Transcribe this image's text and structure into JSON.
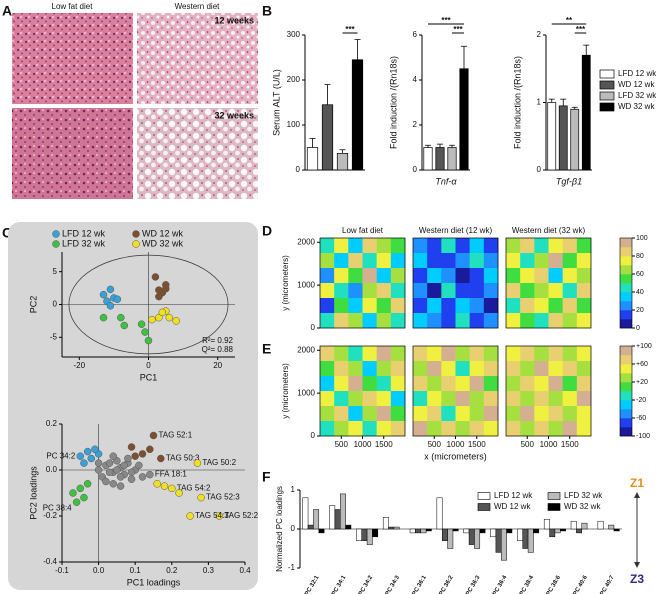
{
  "labels": {
    "panels": [
      "A",
      "B",
      "C",
      "D",
      "E",
      "F"
    ]
  },
  "histology": {
    "columns": [
      "Low fat diet",
      "Western diet"
    ],
    "rows": [
      "12 weeks",
      "32 weeks"
    ]
  },
  "chart_data": [
    {
      "type": "bar",
      "series": [
        {
          "name": "LFD 12 wk",
          "color": "#ffffff"
        },
        {
          "name": "WD 12 wk",
          "color": "#555555"
        },
        {
          "name": "LFD 32 wk",
          "color": "#bbbbbb"
        },
        {
          "name": "WD 32 wk",
          "color": "#000000"
        }
      ],
      "subplots": [
        {
          "ylabel": "Serum ALT (U/L)",
          "values": [
            50,
            145,
            37,
            245
          ],
          "errors": [
            20,
            45,
            8,
            45
          ],
          "ylim": [
            0,
            300
          ],
          "yticks": [
            0,
            100,
            200,
            300
          ],
          "annotations": [
            "***"
          ]
        },
        {
          "ylabel": "Fold induction /(Rn18s)",
          "xlabel": "Tnf-α",
          "values": [
            1,
            1,
            1,
            4.5
          ],
          "errors": [
            0.1,
            0.15,
            0.1,
            1
          ],
          "ylim": [
            0,
            6
          ],
          "yticks": [
            0,
            2,
            4,
            6
          ],
          "annotations": [
            "***",
            "***"
          ]
        },
        {
          "ylabel": "Fold induction /(Rn18s)",
          "xlabel": "Tgf-β1",
          "values": [
            1,
            0.95,
            0.9,
            1.7
          ],
          "errors": [
            0.05,
            0.1,
            0.03,
            0.15
          ],
          "ylim": [
            0,
            2
          ],
          "yticks": [
            0,
            1,
            2
          ],
          "annotations": [
            "***",
            "**"
          ]
        }
      ]
    },
    {
      "type": "scatter",
      "xlabel": "PC1",
      "ylabel": "PC2",
      "xlim": [
        -25,
        25
      ],
      "xticks": [
        -20,
        0,
        20
      ],
      "ylim": [
        -8,
        8
      ],
      "yticks": [
        -5,
        0,
        5
      ],
      "legend": "top",
      "series": [
        {
          "name": "LFD 12 wk",
          "color": "#3aa0d8",
          "x": [
            -13,
            -11,
            -10,
            -12,
            -9,
            -11
          ],
          "values": [
            1.5,
            2.3,
            1,
            0.5,
            0.8,
            -0.2
          ]
        },
        {
          "name": "WD 12 wk",
          "color": "#7a5030",
          "x": [
            2,
            5,
            3,
            4,
            3,
            5
          ],
          "values": [
            4.2,
            3,
            2.2,
            1.8,
            1.2,
            2.4
          ]
        },
        {
          "name": "LFD 32 wk",
          "color": "#40c040",
          "x": [
            -13,
            -8,
            -7,
            -2,
            0,
            -1
          ],
          "values": [
            -2,
            -2,
            -3.2,
            -3,
            -5.5,
            -4.2
          ]
        },
        {
          "name": "WD 32 wk",
          "color": "#f0e020",
          "x": [
            5,
            3,
            6,
            8,
            1,
            4
          ],
          "values": [
            -1,
            -2,
            -2,
            -2.5,
            -2.3,
            -1.2
          ]
        }
      ],
      "annotations": [
        "R²= 0.92",
        "Q²= 0.88"
      ]
    },
    {
      "type": "scatter",
      "xlabel": "PC1 loadings",
      "ylabel": "PC2 loadings",
      "xlim": [
        -0.1,
        0.4
      ],
      "xticks": [
        -0.1,
        {
          "value": 0,
          "label": "0.0"
        },
        0.1,
        0.2,
        0.3,
        0.4
      ],
      "ylim": [
        -0.4,
        0.2
      ],
      "yticks": [
        -0.4,
        -0.2,
        {
          "value": 0,
          "label": "0.0"
        },
        0.2
      ],
      "series": [
        {
          "color": "#888888",
          "x": [
            0,
            0.02,
            0.04,
            0.06,
            0.08,
            0.1,
            0.01,
            0.03,
            0.05,
            0.07,
            0.09,
            0.11,
            0.02,
            0.04,
            0.06,
            0.08,
            0,
            0.03,
            0.05,
            0.07,
            0.09,
            0.12,
            0.06,
            0.04,
            0.14
          ],
          "values": [
            0,
            0.02,
            -0.01,
            0.01,
            0.03,
            0,
            -0.03,
            0.03,
            0.04,
            -0.02,
            -0.04,
            0.02,
            -0.05,
            -0.06,
            -0.03,
            0.05,
            0.03,
            -0.01,
            0,
            0.02,
            -0.01,
            -0.03,
            -0.07,
            0.06,
            -0.02
          ],
          "labels": [
            null,
            null,
            null,
            null,
            null,
            null,
            null,
            null,
            null,
            null,
            null,
            null,
            null,
            null,
            null,
            null,
            null,
            null,
            null,
            null,
            null,
            null,
            null,
            null,
            "FFA 18:1"
          ]
        },
        {
          "color": "#3aa0d8",
          "x": [
            -0.05,
            -0.03,
            -0.02,
            -0.04,
            0,
            -0.01
          ],
          "values": [
            0.06,
            0.08,
            0.05,
            0.03,
            0.07,
            0.09
          ],
          "labels": [
            "PC 34:2",
            null,
            null,
            null,
            null,
            null
          ]
        },
        {
          "color": "#40c040",
          "x": [
            -0.06,
            -0.05,
            -0.03,
            -0.07,
            -0.04
          ],
          "values": [
            -0.14,
            -0.08,
            -0.06,
            -0.1,
            -0.12
          ],
          "labels": [
            "PC 38:4",
            null,
            null,
            null,
            null
          ]
        },
        {
          "color": "#7a5030",
          "x": [
            0.15,
            0.17,
            0.12,
            0.1,
            0.14,
            0.09
          ],
          "values": [
            0.15,
            0.05,
            0.07,
            0.06,
            0.09,
            0.1
          ],
          "labels": [
            "TAG 52:1",
            "TAG 50:3",
            null,
            null,
            null,
            null
          ]
        },
        {
          "color": "#f0e020",
          "x": [
            0.27,
            0.2,
            0.28,
            0.33,
            0.25,
            0.16,
            0.18,
            0.22
          ],
          "values": [
            0.03,
            -0.08,
            -0.12,
            -0.2,
            -0.2,
            -0.06,
            -0.07,
            -0.1
          ],
          "labels": [
            "TAG 50:2",
            "TAG 54:2",
            "TAG 52:3",
            "TAG 52:2",
            "TAG 54:3",
            null,
            null,
            null
          ]
        }
      ]
    },
    {
      "type": "heatmap",
      "ylabel": "y (micrometers)",
      "xlim": [
        0,
        2000
      ],
      "ylim": [
        0,
        2100
      ],
      "yticks": [
        0,
        1000,
        2000
      ],
      "zlim": [
        0,
        100
      ],
      "zticks": [
        0,
        20,
        40,
        60,
        80,
        100
      ],
      "colormap": [
        "#1a1a9c",
        "#2040f0",
        "#1e90ff",
        "#00ccff",
        "#20e0c0",
        "#40dd40",
        "#a6e040",
        "#f0f040",
        "#e8d070",
        "#d4b090"
      ],
      "maps": [
        {
          "title": "Low fat diet",
          "grid": [
            [
              40,
              70,
              30,
              80,
              60,
              50
            ],
            [
              60,
              30,
              85,
              40,
              70,
              35
            ],
            [
              25,
              75,
              50,
              90,
              30,
              60
            ],
            [
              70,
              40,
              20,
              65,
              80,
              45
            ],
            [
              15,
              55,
              35,
              75,
              50,
              85
            ],
            [
              45,
              80,
              60,
              30,
              65,
              40
            ]
          ]
        },
        {
          "title": "Western diet (12 wk)",
          "grid": [
            [
              20,
              10,
              40,
              15,
              30,
              10
            ],
            [
              35,
              15,
              10,
              25,
              45,
              20
            ],
            [
              10,
              30,
              20,
              5,
              15,
              35
            ],
            [
              25,
              5,
              40,
              15,
              10,
              20
            ],
            [
              15,
              35,
              10,
              30,
              25,
              5
            ],
            [
              30,
              20,
              15,
              40,
              10,
              25
            ]
          ]
        },
        {
          "title": "Western diet (32 wk)",
          "grid": [
            [
              60,
              80,
              45,
              70,
              85,
              55
            ],
            [
              75,
              40,
              65,
              90,
              50,
              70
            ],
            [
              55,
              70,
              80,
              35,
              75,
              60
            ],
            [
              80,
              50,
              60,
              75,
              45,
              85
            ],
            [
              40,
              85,
              70,
              55,
              80,
              50
            ],
            [
              70,
              55,
              40,
              80,
              60,
              75
            ]
          ]
        }
      ]
    },
    {
      "type": "heatmap",
      "ylabel": "y (micrometers)",
      "xlabel": "x (micrometers)",
      "xlim": [
        0,
        2000
      ],
      "xticks": [
        500,
        1000,
        1500
      ],
      "ylim": [
        0,
        2100
      ],
      "yticks": [
        0,
        1000,
        2000
      ],
      "zlim": [
        -100,
        100
      ],
      "zticks": [
        {
          "value": 100,
          "label": "+100"
        },
        {
          "value": 60,
          "label": "+60"
        },
        {
          "value": 20,
          "label": "+20"
        },
        -20,
        -60,
        -100
      ],
      "colormap": [
        "#1a1a9c",
        "#2040f0",
        "#1e90ff",
        "#00ccff",
        "#20e0c0",
        "#40dd40",
        "#a6e040",
        "#f0f040",
        "#e8d070",
        "#d4b090"
      ],
      "maps": [
        {
          "grid": [
            [
              60,
              20,
              -20,
              40,
              80,
              30
            ],
            [
              10,
              70,
              30,
              -40,
              20,
              60
            ],
            [
              -30,
              40,
              90,
              10,
              -10,
              40
            ],
            [
              50,
              -20,
              30,
              70,
              40,
              -30
            ],
            [
              20,
              60,
              -40,
              30,
              80,
              10
            ],
            [
              -10,
              30,
              50,
              -20,
              40,
              70
            ]
          ]
        },
        {
          "grid": [
            [
              70,
              40,
              80,
              20,
              60,
              30
            ],
            [
              30,
              90,
              50,
              -10,
              40,
              70
            ],
            [
              60,
              20,
              70,
              40,
              80,
              10
            ],
            [
              -20,
              50,
              30,
              90,
              20,
              60
            ],
            [
              40,
              70,
              -10,
              50,
              30,
              80
            ],
            [
              80,
              30,
              60,
              20,
              70,
              40
            ]
          ]
        },
        {
          "grid": [
            [
              40,
              70,
              20,
              60,
              30,
              50
            ],
            [
              60,
              30,
              80,
              40,
              70,
              20
            ],
            [
              20,
              60,
              40,
              90,
              10,
              60
            ],
            [
              70,
              30,
              60,
              20,
              50,
              80
            ],
            [
              30,
              80,
              40,
              60,
              20,
              40
            ],
            [
              60,
              20,
              70,
              30,
              80,
              50
            ]
          ]
        }
      ]
    },
    {
      "type": "bar",
      "ylabel": "Normalized PC loadings",
      "categories": [
        "PC 32:1",
        "PC 34:1",
        "PC 34:2",
        "PC 34:3",
        "PC 36:1",
        "PC 36:2",
        "PC 36:3",
        "PC 36:4",
        "PC 38:4",
        "PC 38:6",
        "PC 40:6",
        "PC 40:7"
      ],
      "ylim": [
        -1,
        1
      ],
      "yticks": [
        -1,
        0,
        1
      ],
      "series": [
        {
          "name": "LFD 12 wk",
          "color": "#ffffff",
          "values": [
            0.8,
            0.6,
            -0.3,
            0.3,
            -0.1,
            0.8,
            -0.1,
            -0.2,
            -0.3,
            0.25,
            0.2,
            0.2
          ]
        },
        {
          "name": "WD 12 wk",
          "color": "#555555",
          "values": [
            0.1,
            0.5,
            -0.3,
            0.05,
            -0.1,
            -0.3,
            -0.4,
            -0.6,
            -0.5,
            -0.2,
            -0.1,
            0
          ]
        },
        {
          "name": "LFD 32 wk",
          "color": "#bbbbbb",
          "values": [
            0.5,
            0.9,
            -0.4,
            0.05,
            -0.1,
            -0.5,
            -0.5,
            -0.8,
            -0.6,
            -0.1,
            0.15,
            0.1
          ]
        },
        {
          "name": "WD 32 wk",
          "color": "#000000",
          "values": [
            -0.1,
            0.1,
            -0.2,
            0,
            -0.05,
            -0.05,
            -0.1,
            -0.1,
            -0.1,
            -0.05,
            0,
            -0.05
          ]
        }
      ],
      "annotations": [
        "Z1",
        "Z3"
      ]
    }
  ]
}
